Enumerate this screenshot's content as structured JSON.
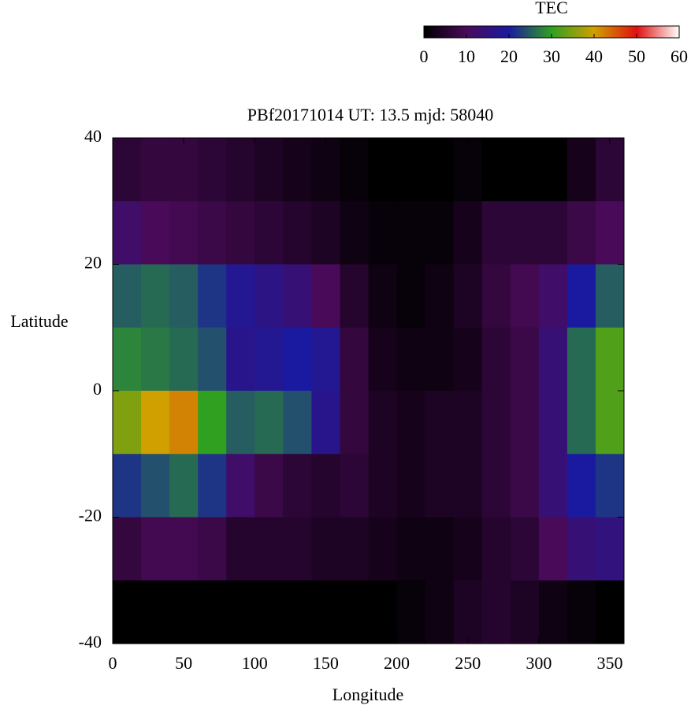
{
  "chart_data": {
    "type": "heatmap",
    "title": "PBf20171014  UT: 13.5  mjd: 58040",
    "xlabel": "Longitude",
    "ylabel": "Latitude",
    "colorbar_title": "TEC",
    "x": [
      10,
      30,
      50,
      70,
      90,
      110,
      130,
      150,
      170,
      190,
      210,
      230,
      250,
      270,
      290,
      310,
      330,
      350
    ],
    "y": [
      35,
      25,
      15,
      5,
      -5,
      -15,
      -25,
      -35
    ],
    "z": [
      [
        6,
        7,
        7,
        6,
        5,
        4,
        3,
        2,
        1,
        0,
        0,
        0,
        1,
        0,
        0,
        0,
        3,
        6
      ],
      [
        12,
        10,
        9,
        8,
        7,
        6,
        5,
        4,
        2,
        1,
        1,
        1,
        3,
        6,
        6,
        6,
        8,
        10
      ],
      [
        25,
        26,
        25,
        22,
        18,
        16,
        14,
        10,
        5,
        2,
        1,
        2,
        4,
        7,
        9,
        12,
        20,
        25
      ],
      [
        28,
        27,
        26,
        24,
        17,
        18,
        20,
        18,
        7,
        3,
        2,
        2,
        3,
        6,
        8,
        14,
        26,
        32
      ],
      [
        35,
        40,
        42,
        30,
        25,
        26,
        24,
        17,
        7,
        4,
        3,
        4,
        4,
        6,
        8,
        14,
        26,
        32
      ],
      [
        22,
        24,
        26,
        22,
        12,
        8,
        6,
        5,
        6,
        4,
        3,
        4,
        4,
        6,
        8,
        14,
        20,
        22
      ],
      [
        7,
        9,
        9,
        8,
        5,
        5,
        5,
        4,
        4,
        3,
        2,
        2,
        3,
        5,
        6,
        10,
        14,
        15
      ],
      [
        0,
        0,
        0,
        0,
        0,
        0,
        0,
        0,
        0,
        0,
        1,
        2,
        4,
        5,
        4,
        2,
        1,
        0
      ]
    ],
    "xlim": [
      0,
      360
    ],
    "ylim": [
      -40,
      40
    ],
    "xticks": [
      0,
      50,
      100,
      150,
      200,
      250,
      300,
      350
    ],
    "yticks": [
      -40,
      -20,
      0,
      20,
      40
    ],
    "zlim": [
      0,
      60
    ],
    "zticks": [
      0,
      10,
      20,
      30,
      40,
      50,
      60
    ],
    "colorscale": [
      "#000000",
      "#4a0a5a",
      "#1a1aa0",
      "#30a020",
      "#d0a000",
      "#e01010",
      "#ffffff"
    ]
  }
}
